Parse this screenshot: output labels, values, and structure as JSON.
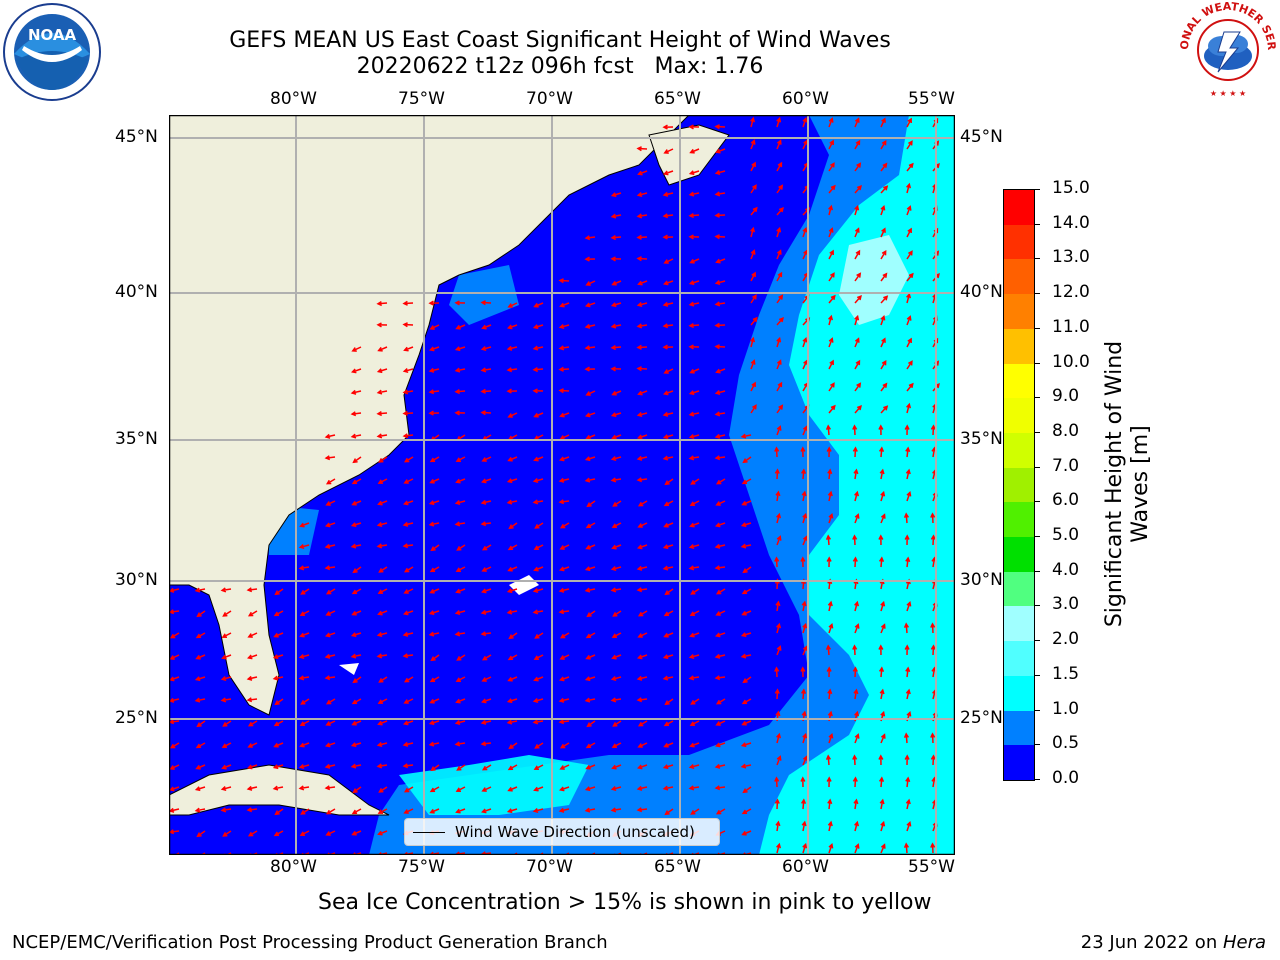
{
  "title": {
    "line1": "GEFS MEAN US East Coast Significant Height of Wind Waves",
    "line2": "20220622 t12z 096h fcst   Max: 1.76"
  },
  "map": {
    "lon_labels": [
      "80°W",
      "75°W",
      "70°W",
      "65°W",
      "60°W",
      "55°W"
    ],
    "lat_labels": [
      "45°N",
      "40°N",
      "35°N",
      "30°N",
      "25°N"
    ],
    "legend_label": "Wind Wave Direction (unscaled)"
  },
  "colorbar": {
    "label_line1": "Significant Height of Wind",
    "label_line2": "Waves [m]",
    "ticks": [
      "0.0",
      "0.5",
      "1.0",
      "1.5",
      "2.0",
      "3.0",
      "4.0",
      "5.0",
      "6.0",
      "7.0",
      "8.0",
      "9.0",
      "10.0",
      "11.0",
      "12.0",
      "13.0",
      "14.0",
      "15.0"
    ],
    "colors": [
      "#0000ff",
      "#0080ff",
      "#00ffff",
      "#50ffff",
      "#a0ffff",
      "#50ff80",
      "#00e000",
      "#50f000",
      "#a0f000",
      "#d0ff00",
      "#f0ff00",
      "#ffff00",
      "#ffc000",
      "#ff8000",
      "#ff6000",
      "#ff3000",
      "#ff0000"
    ]
  },
  "note": "Sea Ice Concentration > 15% is shown in pink to yellow",
  "footer": {
    "left": "NCEP/EMC/Verification Post Processing Product Generation Branch",
    "right_prefix": "23 Jun 2022 on ",
    "right_machine": "Hera"
  },
  "logos": {
    "noaa_text": "NOAA",
    "nws_text": "NATIONAL WEATHER SERVICE"
  }
}
